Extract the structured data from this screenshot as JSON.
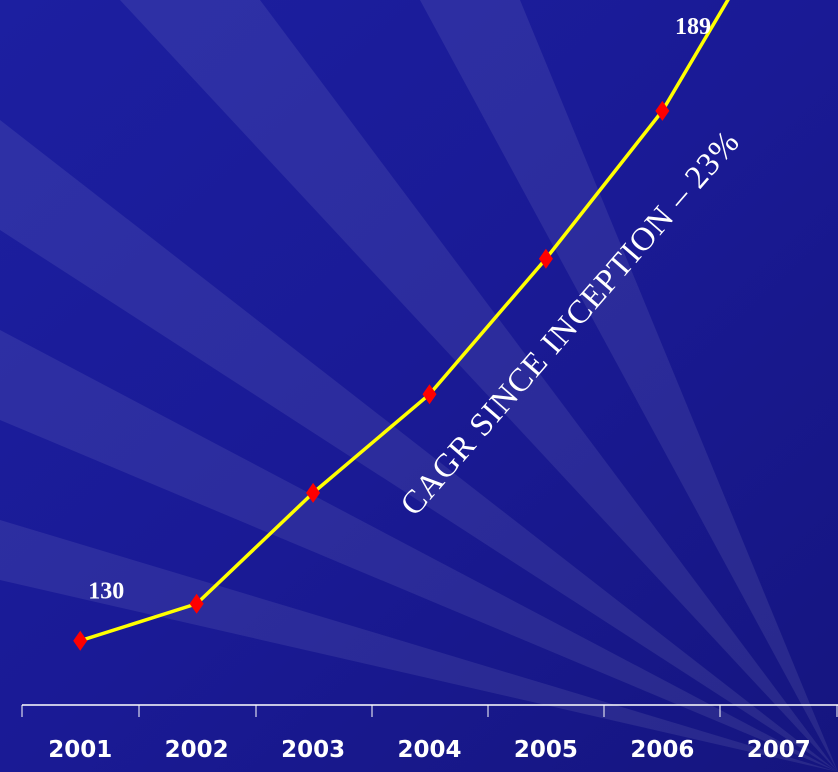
{
  "chart_data": {
    "type": "line",
    "categories": [
      "2001",
      "2002",
      "2003",
      "2004",
      "2005",
      "2006",
      "2007"
    ],
    "series": [
      {
        "color": "#ffff00",
        "marker_color": "#ff0000",
        "values": [
          130,
          133,
          142,
          150,
          161,
          173,
          189
        ],
        "value_labels": [
          "130",
          null,
          null,
          null,
          null,
          null,
          "189"
        ]
      }
    ],
    "ylim": [
      126,
      182
    ],
    "annotation": "CAGR SINCE INCEPTION – 23%"
  }
}
